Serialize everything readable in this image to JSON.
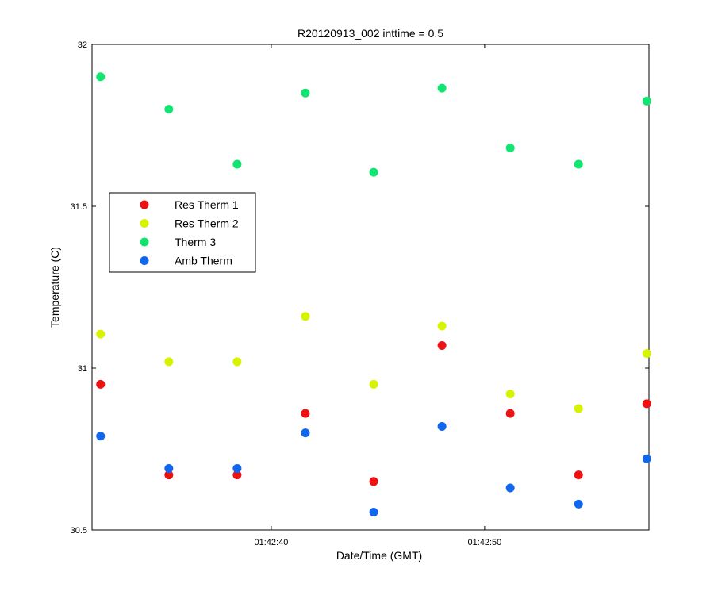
{
  "chart_data": {
    "type": "scatter",
    "title": "R20120913_002 inttime = 0.5",
    "xlabel": "Date/Time (GMT)",
    "ylabel": "Temperature (C)",
    "ylim": [
      30.5,
      32
    ],
    "yticks": [
      "30.5",
      "31",
      "31.5",
      "32"
    ],
    "xlim": [
      "01:42:31.6",
      "01:42:57.7"
    ],
    "xticks": [
      "01:42:40",
      "01:42:50"
    ],
    "grid": false,
    "legend_position": "left",
    "x": [
      "01:42:32.0",
      "01:42:35.2",
      "01:42:38.4",
      "01:42:41.6",
      "01:42:44.8",
      "01:42:48.0",
      "01:42:51.2",
      "01:42:54.4",
      "01:42:57.6"
    ],
    "series": [
      {
        "name": "Res Therm 1",
        "color": "#ee1111",
        "values": [
          30.95,
          30.67,
          30.67,
          30.86,
          30.65,
          31.07,
          30.86,
          30.67,
          30.89
        ]
      },
      {
        "name": "Res Therm 2",
        "color": "#d7f300",
        "values": [
          31.105,
          31.02,
          31.02,
          31.16,
          30.95,
          31.13,
          30.92,
          30.875,
          31.045
        ]
      },
      {
        "name": "Therm 3",
        "color": "#11e470",
        "values": [
          31.9,
          31.8,
          31.63,
          31.85,
          31.605,
          31.865,
          31.68,
          31.63,
          31.825
        ]
      },
      {
        "name": "Amb Therm",
        "color": "#1166ee",
        "values": [
          30.79,
          30.69,
          30.69,
          30.8,
          30.555,
          30.82,
          30.63,
          30.58,
          30.72
        ]
      }
    ]
  }
}
